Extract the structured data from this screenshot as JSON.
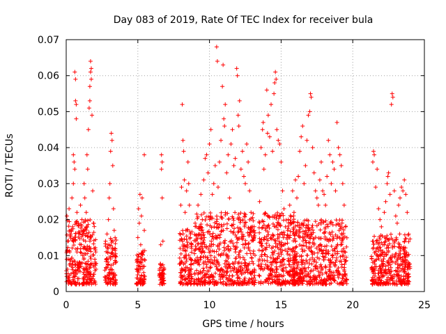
{
  "chart_data": {
    "type": "scatter",
    "title": "Day 083 of 2019, Rate Of TEC Index for receiver bula",
    "xlabel": "GPS time / hours",
    "ylabel": "ROTI / TECUs",
    "xlim": [
      0,
      25
    ],
    "ylim": [
      0,
      0.07
    ],
    "grid": true,
    "marker": "plus",
    "series_color": "#ff0000",
    "x_ticks": [
      "0",
      "5",
      "10",
      "15",
      "20",
      "25"
    ],
    "y_ticks": [
      "0",
      "0.01",
      "0.02",
      "0.03",
      "0.04",
      "0.05",
      "0.06",
      "0.07"
    ],
    "points": [
      [
        0.05,
        0.021
      ],
      [
        0.1,
        0.014
      ],
      [
        0.15,
        0.009
      ],
      [
        0.2,
        0.023
      ],
      [
        0.25,
        0.011
      ],
      [
        0.3,
        0.016
      ],
      [
        0.35,
        0.007
      ],
      [
        0.4,
        0.026
      ],
      [
        0.45,
        0.018
      ],
      [
        0.5,
        0.03
      ],
      [
        0.5,
        0.038
      ],
      [
        0.55,
        0.036
      ],
      [
        0.6,
        0.034
      ],
      [
        0.6,
        0.061
      ],
      [
        0.65,
        0.059
      ],
      [
        0.65,
        0.053
      ],
      [
        0.7,
        0.052
      ],
      [
        0.7,
        0.048
      ],
      [
        0.75,
        0.022
      ],
      [
        0.8,
        0.012
      ],
      [
        0.85,
        0.019
      ],
      [
        0.9,
        0.008
      ],
      [
        0.95,
        0.016
      ],
      [
        1.0,
        0.024
      ],
      [
        1.05,
        0.013
      ],
      [
        1.1,
        0.02
      ],
      [
        1.15,
        0.01
      ],
      [
        1.2,
        0.017
      ],
      [
        1.25,
        0.03
      ],
      [
        1.3,
        0.026
      ],
      [
        1.35,
        0.014
      ],
      [
        1.4,
        0.022
      ],
      [
        1.45,
        0.038
      ],
      [
        1.5,
        0.034
      ],
      [
        1.55,
        0.045
      ],
      [
        1.6,
        0.051
      ],
      [
        1.65,
        0.053
      ],
      [
        1.65,
        0.057
      ],
      [
        1.7,
        0.061
      ],
      [
        1.7,
        0.064
      ],
      [
        1.75,
        0.062
      ],
      [
        1.75,
        0.059
      ],
      [
        1.8,
        0.049
      ],
      [
        1.85,
        0.028
      ],
      [
        1.9,
        0.019
      ],
      [
        1.95,
        0.012
      ],
      [
        2.0,
        0.009
      ],
      [
        2.75,
        0.014
      ],
      [
        2.8,
        0.009
      ],
      [
        2.85,
        0.016
      ],
      [
        2.9,
        0.011
      ],
      [
        2.95,
        0.02
      ],
      [
        3.0,
        0.026
      ],
      [
        3.05,
        0.03
      ],
      [
        3.1,
        0.039
      ],
      [
        3.15,
        0.044
      ],
      [
        3.2,
        0.042
      ],
      [
        3.25,
        0.035
      ],
      [
        3.3,
        0.023
      ],
      [
        3.35,
        0.017
      ],
      [
        3.4,
        0.012
      ],
      [
        3.45,
        0.008
      ],
      [
        4.95,
        0.009
      ],
      [
        5.0,
        0.015
      ],
      [
        5.05,
        0.023
      ],
      [
        5.1,
        0.019
      ],
      [
        5.15,
        0.027
      ],
      [
        5.2,
        0.013
      ],
      [
        5.25,
        0.021
      ],
      [
        5.3,
        0.026
      ],
      [
        5.35,
        0.011
      ],
      [
        5.45,
        0.038
      ],
      [
        5.45,
        0.017
      ],
      [
        6.55,
        0.004
      ],
      [
        6.6,
        0.013
      ],
      [
        6.65,
        0.034
      ],
      [
        6.65,
        0.038
      ],
      [
        6.7,
        0.036
      ],
      [
        6.7,
        0.026
      ],
      [
        6.75,
        0.014
      ],
      [
        6.8,
        0.006
      ],
      [
        7.95,
        0.012
      ],
      [
        8.0,
        0.024
      ],
      [
        8.05,
        0.029
      ],
      [
        8.1,
        0.052
      ],
      [
        8.15,
        0.042
      ],
      [
        8.2,
        0.039
      ],
      [
        8.25,
        0.031
      ],
      [
        8.3,
        0.022
      ],
      [
        8.35,
        0.017
      ],
      [
        8.4,
        0.028
      ],
      [
        8.45,
        0.013
      ],
      [
        8.5,
        0.036
      ],
      [
        8.55,
        0.03
      ],
      [
        8.6,
        0.024
      ],
      [
        8.65,
        0.015
      ],
      [
        8.7,
        0.009
      ],
      [
        9.0,
        0.019
      ],
      [
        9.1,
        0.012
      ],
      [
        9.2,
        0.024
      ],
      [
        9.3,
        0.016
      ],
      [
        9.4,
        0.027
      ],
      [
        9.5,
        0.02
      ],
      [
        9.6,
        0.031
      ],
      [
        9.7,
        0.037
      ],
      [
        9.8,
        0.038
      ],
      [
        9.9,
        0.033
      ],
      [
        10.0,
        0.041
      ],
      [
        10.1,
        0.045
      ],
      [
        10.2,
        0.027
      ],
      [
        10.3,
        0.03
      ],
      [
        10.4,
        0.035
      ],
      [
        10.5,
        0.068
      ],
      [
        10.55,
        0.064
      ],
      [
        10.6,
        0.029
      ],
      [
        10.7,
        0.036
      ],
      [
        10.8,
        0.042
      ],
      [
        10.9,
        0.057
      ],
      [
        10.95,
        0.063
      ],
      [
        11.0,
        0.048
      ],
      [
        11.05,
        0.046
      ],
      [
        11.1,
        0.052
      ],
      [
        11.2,
        0.033
      ],
      [
        11.3,
        0.038
      ],
      [
        11.4,
        0.026
      ],
      [
        11.5,
        0.041
      ],
      [
        11.6,
        0.045
      ],
      [
        11.7,
        0.035
      ],
      [
        11.8,
        0.037
      ],
      [
        11.9,
        0.062
      ],
      [
        11.95,
        0.06
      ],
      [
        12.0,
        0.049
      ],
      [
        12.05,
        0.046
      ],
      [
        12.1,
        0.053
      ],
      [
        12.2,
        0.034
      ],
      [
        12.3,
        0.039
      ],
      [
        12.4,
        0.032
      ],
      [
        12.5,
        0.03
      ],
      [
        12.6,
        0.041
      ],
      [
        12.7,
        0.036
      ],
      [
        12.8,
        0.028
      ],
      [
        12.9,
        0.022
      ],
      [
        13.0,
        0.018
      ],
      [
        13.1,
        0.015
      ],
      [
        13.5,
        0.025
      ],
      [
        13.6,
        0.04
      ],
      [
        13.7,
        0.045
      ],
      [
        13.75,
        0.047
      ],
      [
        13.8,
        0.034
      ],
      [
        13.9,
        0.038
      ],
      [
        14.0,
        0.056
      ],
      [
        14.05,
        0.044
      ],
      [
        14.1,
        0.049
      ],
      [
        14.2,
        0.043
      ],
      [
        14.3,
        0.052
      ],
      [
        14.4,
        0.039
      ],
      [
        14.5,
        0.055
      ],
      [
        14.55,
        0.058
      ],
      [
        14.6,
        0.061
      ],
      [
        14.65,
        0.059
      ],
      [
        14.7,
        0.045
      ],
      [
        14.8,
        0.042
      ],
      [
        14.9,
        0.041
      ],
      [
        15.0,
        0.036
      ],
      [
        15.1,
        0.028
      ],
      [
        15.2,
        0.023
      ],
      [
        15.3,
        0.018
      ],
      [
        15.4,
        0.015
      ],
      [
        15.5,
        0.02
      ],
      [
        15.6,
        0.024
      ],
      [
        15.8,
        0.028
      ],
      [
        15.9,
        0.022
      ],
      [
        16.0,
        0.031
      ],
      [
        16.1,
        0.026
      ],
      [
        16.2,
        0.032
      ],
      [
        16.3,
        0.039
      ],
      [
        16.4,
        0.043
      ],
      [
        16.5,
        0.046
      ],
      [
        16.6,
        0.03
      ],
      [
        16.7,
        0.035
      ],
      [
        16.8,
        0.042
      ],
      [
        16.9,
        0.049
      ],
      [
        17.0,
        0.05
      ],
      [
        17.05,
        0.055
      ],
      [
        17.1,
        0.054
      ],
      [
        17.2,
        0.04
      ],
      [
        17.3,
        0.033
      ],
      [
        17.4,
        0.028
      ],
      [
        17.5,
        0.026
      ],
      [
        17.6,
        0.024
      ],
      [
        17.7,
        0.031
      ],
      [
        17.8,
        0.036
      ],
      [
        17.9,
        0.028
      ],
      [
        18.0,
        0.027
      ],
      [
        18.1,
        0.024
      ],
      [
        18.2,
        0.032
      ],
      [
        18.3,
        0.042
      ],
      [
        18.4,
        0.038
      ],
      [
        18.5,
        0.03
      ],
      [
        18.6,
        0.036
      ],
      [
        18.7,
        0.034
      ],
      [
        18.8,
        0.028
      ],
      [
        18.9,
        0.047
      ],
      [
        19.0,
        0.04
      ],
      [
        19.1,
        0.038
      ],
      [
        19.2,
        0.035
      ],
      [
        19.3,
        0.03
      ],
      [
        19.4,
        0.024
      ],
      [
        19.5,
        0.018
      ],
      [
        21.4,
        0.036
      ],
      [
        21.45,
        0.039
      ],
      [
        21.5,
        0.038
      ],
      [
        21.6,
        0.029
      ],
      [
        21.7,
        0.034
      ],
      [
        21.8,
        0.023
      ],
      [
        21.9,
        0.02
      ],
      [
        22.0,
        0.018
      ],
      [
        22.1,
        0.013
      ],
      [
        22.2,
        0.022
      ],
      [
        22.3,
        0.025
      ],
      [
        22.4,
        0.03
      ],
      [
        22.45,
        0.032
      ],
      [
        22.5,
        0.033
      ],
      [
        22.6,
        0.027
      ],
      [
        22.7,
        0.052
      ],
      [
        22.75,
        0.055
      ],
      [
        22.8,
        0.054
      ],
      [
        22.9,
        0.028
      ],
      [
        23.0,
        0.021
      ],
      [
        23.1,
        0.019
      ],
      [
        23.2,
        0.024
      ],
      [
        23.3,
        0.026
      ],
      [
        23.4,
        0.029
      ],
      [
        23.5,
        0.028
      ],
      [
        23.6,
        0.031
      ],
      [
        23.7,
        0.027
      ],
      [
        23.8,
        0.022
      ],
      [
        23.9,
        0.016
      ]
    ],
    "dense_bands": [
      {
        "x": [
          0.0,
          2.1
        ],
        "y": [
          0.002,
          0.02
        ]
      },
      {
        "x": [
          2.7,
          3.5
        ],
        "y": [
          0.002,
          0.015
        ]
      },
      {
        "x": [
          4.9,
          5.5
        ],
        "y": [
          0.002,
          0.012
        ]
      },
      {
        "x": [
          6.5,
          6.85
        ],
        "y": [
          0.002,
          0.008
        ]
      },
      {
        "x": [
          7.9,
          8.8
        ],
        "y": [
          0.002,
          0.018
        ]
      },
      {
        "x": [
          8.9,
          13.2
        ],
        "y": [
          0.002,
          0.022
        ]
      },
      {
        "x": [
          13.4,
          16.0
        ],
        "y": [
          0.002,
          0.022
        ]
      },
      {
        "x": [
          15.8,
          19.6
        ],
        "y": [
          0.002,
          0.02
        ]
      },
      {
        "x": [
          21.3,
          24.0
        ],
        "y": [
          0.002,
          0.016
        ]
      }
    ]
  }
}
